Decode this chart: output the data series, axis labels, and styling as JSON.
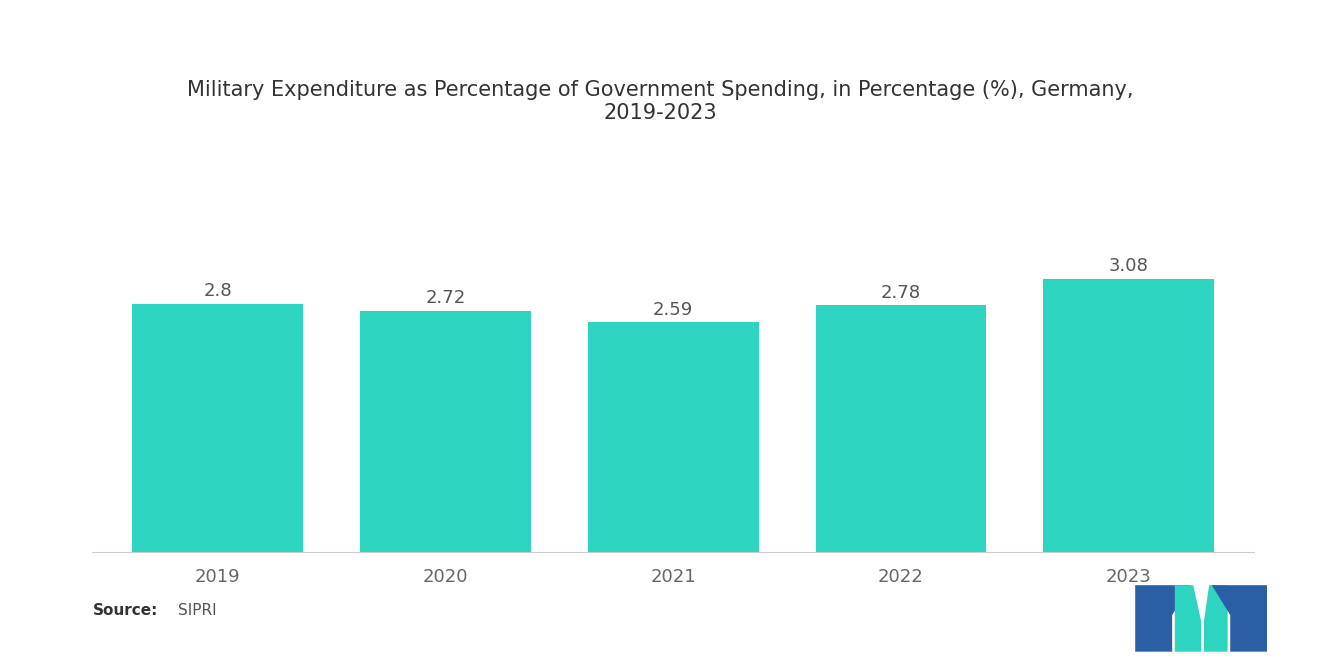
{
  "title": "Military Expenditure as Percentage of Government Spending, in Percentage (%), Germany,\n2019-2023",
  "categories": [
    "2019",
    "2020",
    "2021",
    "2022",
    "2023"
  ],
  "values": [
    2.8,
    2.72,
    2.59,
    2.78,
    3.08
  ],
  "bar_color": "#2DD4BF",
  "background_color": "#ffffff",
  "title_fontsize": 15,
  "label_fontsize": 13,
  "value_fontsize": 13,
  "source_label_bold": "Source:",
  "source_label_normal": "  SIPRI",
  "ylim": [
    0,
    3.6
  ],
  "bar_width": 0.75,
  "logo_blue": "#2B5FA5",
  "logo_teal": "#2DD4BF"
}
